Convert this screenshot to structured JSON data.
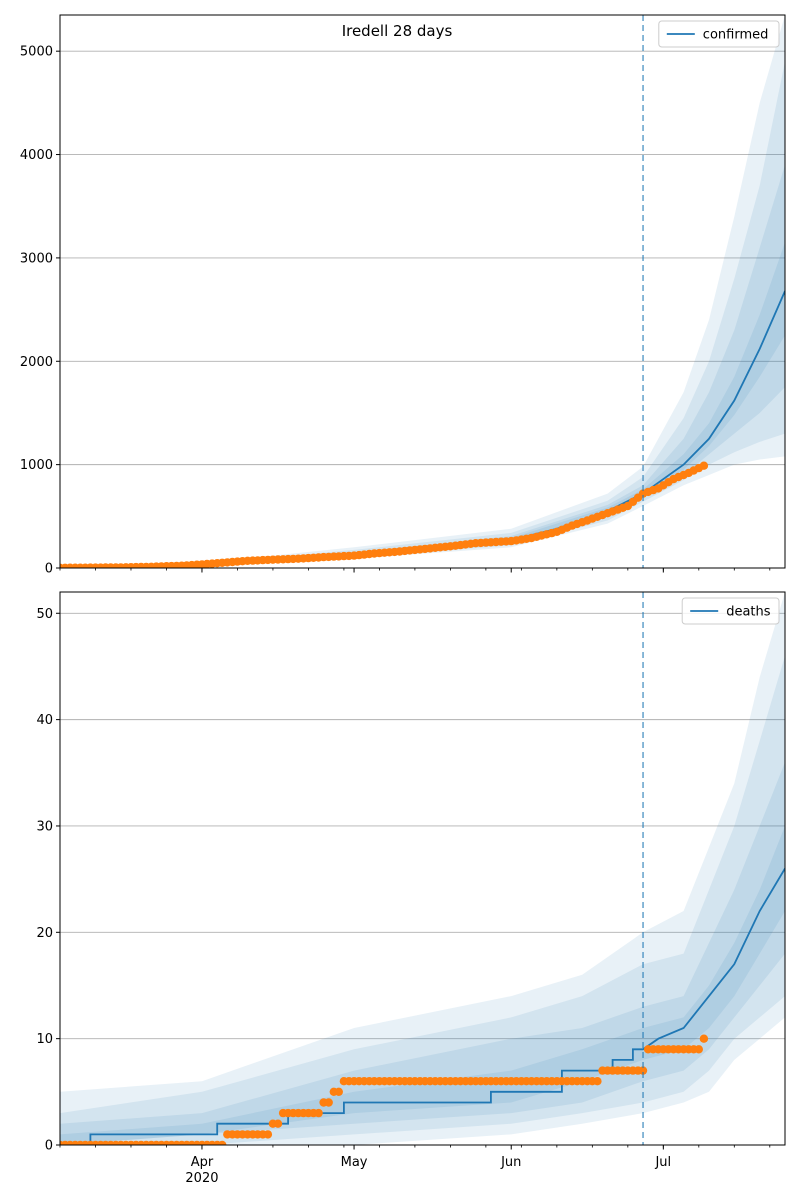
{
  "figure": {
    "title": "Iredell 28 days",
    "x_ticks": [
      {
        "label": "Apr",
        "sub": "2020",
        "date": "2020-04-01"
      },
      {
        "label": "May",
        "sub": "",
        "date": "2020-05-01"
      },
      {
        "label": "Jun",
        "sub": "",
        "date": "2020-06-01"
      },
      {
        "label": "Jul",
        "sub": "",
        "date": "2020-07-01"
      }
    ],
    "x_range": [
      "2020-03-04",
      "2020-07-25"
    ],
    "forecast_start": "2020-06-27",
    "colors": {
      "line": "#1f77b4",
      "band": "#1f77b4",
      "observed": "#ff7f0e",
      "grid": "#b0b0b0"
    }
  },
  "chart_data": [
    {
      "type": "line",
      "title": "Iredell 28 days",
      "xlabel": "",
      "ylabel": "",
      "ylim": [
        0,
        5350
      ],
      "y_ticks": [
        0,
        1000,
        2000,
        3000,
        4000,
        5000
      ],
      "grid": "y",
      "legend": {
        "position": "top-right",
        "entries": [
          "confirmed"
        ]
      },
      "median": {
        "name": "confirmed",
        "x": [
          "2020-03-04",
          "2020-03-20",
          "2020-04-01",
          "2020-04-15",
          "2020-05-01",
          "2020-05-15",
          "2020-06-01",
          "2020-06-10",
          "2020-06-20",
          "2020-06-27",
          "2020-07-05",
          "2020-07-10",
          "2020-07-15",
          "2020-07-20",
          "2020-07-25"
        ],
        "y": [
          5,
          10,
          30,
          75,
          130,
          180,
          270,
          380,
          550,
          720,
          1000,
          1250,
          1620,
          2120,
          2680
        ]
      },
      "bands": [
        {
          "x": [
            "2020-03-04",
            "2020-04-01",
            "2020-05-01",
            "2020-06-01",
            "2020-06-20",
            "2020-06-27",
            "2020-07-05",
            "2020-07-10",
            "2020-07-15",
            "2020-07-20",
            "2020-07-25"
          ],
          "low": [
            0,
            15,
            90,
            200,
            430,
            600,
            800,
            900,
            1000,
            1050,
            1080
          ],
          "high": [
            15,
            50,
            200,
            380,
            720,
            980,
            1700,
            2400,
            3400,
            4500,
            5350
          ]
        },
        {
          "x": [
            "2020-03-04",
            "2020-04-01",
            "2020-05-01",
            "2020-06-01",
            "2020-06-20",
            "2020-06-27",
            "2020-07-05",
            "2020-07-10",
            "2020-07-15",
            "2020-07-20",
            "2020-07-25"
          ],
          "low": [
            0,
            20,
            100,
            220,
            460,
            640,
            850,
            1000,
            1120,
            1220,
            1300
          ],
          "high": [
            12,
            42,
            175,
            340,
            650,
            880,
            1450,
            2000,
            2800,
            3700,
            4900
          ]
        },
        {
          "x": [
            "2020-03-04",
            "2020-04-01",
            "2020-05-01",
            "2020-06-01",
            "2020-06-20",
            "2020-06-27",
            "2020-07-05",
            "2020-07-10",
            "2020-07-15",
            "2020-07-20",
            "2020-07-25"
          ],
          "low": [
            2,
            25,
            115,
            240,
            500,
            680,
            900,
            1100,
            1300,
            1500,
            1750
          ],
          "high": [
            9,
            36,
            150,
            310,
            610,
            800,
            1250,
            1700,
            2300,
            3100,
            3900
          ]
        },
        {
          "x": [
            "2020-03-04",
            "2020-04-01",
            "2020-05-01",
            "2020-06-01",
            "2020-06-20",
            "2020-06-27",
            "2020-07-05",
            "2020-07-10",
            "2020-07-15",
            "2020-07-20",
            "2020-07-25"
          ],
          "low": [
            3,
            28,
            125,
            255,
            525,
            700,
            950,
            1180,
            1480,
            1850,
            2250
          ],
          "high": [
            7,
            33,
            140,
            290,
            585,
            760,
            1100,
            1400,
            1850,
            2450,
            3150
          ]
        }
      ],
      "observed": {
        "x": [
          "2020-03-04",
          "2020-03-15",
          "2020-03-22",
          "2020-03-28",
          "2020-04-01",
          "2020-04-05",
          "2020-04-10",
          "2020-04-15",
          "2020-04-20",
          "2020-04-25",
          "2020-05-01",
          "2020-05-05",
          "2020-05-10",
          "2020-05-15",
          "2020-05-20",
          "2020-05-25",
          "2020-06-01",
          "2020-06-05",
          "2020-06-10",
          "2020-06-13",
          "2020-06-16",
          "2020-06-20",
          "2020-06-24",
          "2020-06-27",
          "2020-06-30",
          "2020-07-03",
          "2020-07-06",
          "2020-07-09"
        ],
        "y": [
          2,
          5,
          12,
          22,
          35,
          50,
          70,
          80,
          90,
          105,
          120,
          140,
          160,
          185,
          210,
          240,
          260,
          290,
          350,
          410,
          460,
          530,
          600,
          720,
          770,
          860,
          920,
          990
        ]
      }
    },
    {
      "type": "line",
      "xlabel": "",
      "ylabel": "",
      "ylim": [
        0,
        52
      ],
      "y_ticks": [
        0,
        10,
        20,
        30,
        40,
        50
      ],
      "grid": "y",
      "legend": {
        "position": "top-right",
        "entries": [
          "deaths"
        ]
      },
      "median": {
        "name": "deaths",
        "x": [
          "2020-03-04",
          "2020-03-10",
          "2020-03-10",
          "2020-04-04",
          "2020-04-04",
          "2020-04-18",
          "2020-04-18",
          "2020-04-29",
          "2020-04-29",
          "2020-05-28",
          "2020-05-28",
          "2020-06-11",
          "2020-06-11",
          "2020-06-21",
          "2020-06-21",
          "2020-06-25",
          "2020-06-25",
          "2020-06-27",
          "2020-06-30",
          "2020-07-05",
          "2020-07-10",
          "2020-07-15",
          "2020-07-20",
          "2020-07-25"
        ],
        "y": [
          0,
          0,
          1,
          1,
          2,
          2,
          3,
          3,
          4,
          4,
          5,
          5,
          7,
          7,
          8,
          8,
          9,
          9,
          10,
          11,
          14,
          17,
          22,
          26
        ]
      },
      "bands": [
        {
          "x": [
            "2020-03-04",
            "2020-04-01",
            "2020-05-01",
            "2020-06-01",
            "2020-06-15",
            "2020-06-27",
            "2020-07-05",
            "2020-07-10",
            "2020-07-15",
            "2020-07-20",
            "2020-07-25"
          ],
          "low": [
            0,
            0,
            0,
            1,
            2,
            3,
            4,
            5,
            8,
            10,
            12
          ],
          "high": [
            5,
            6,
            11,
            14,
            16,
            20,
            22,
            28,
            34,
            44,
            52
          ]
        },
        {
          "x": [
            "2020-03-04",
            "2020-04-01",
            "2020-05-01",
            "2020-06-01",
            "2020-06-15",
            "2020-06-27",
            "2020-07-05",
            "2020-07-10",
            "2020-07-15",
            "2020-07-20",
            "2020-07-25"
          ],
          "low": [
            0,
            0,
            1,
            2,
            3,
            4,
            5,
            7,
            10,
            12,
            14
          ],
          "high": [
            3,
            5,
            9,
            12,
            14,
            17,
            18,
            24,
            30,
            38,
            46
          ]
        },
        {
          "x": [
            "2020-03-04",
            "2020-04-01",
            "2020-05-01",
            "2020-06-01",
            "2020-06-15",
            "2020-06-27",
            "2020-07-05",
            "2020-07-10",
            "2020-07-15",
            "2020-07-20",
            "2020-07-25"
          ],
          "low": [
            0,
            1,
            2,
            3,
            4,
            6,
            7,
            9,
            12,
            15,
            18
          ],
          "high": [
            2,
            3,
            7,
            10,
            11,
            13,
            14,
            19,
            24,
            30,
            36
          ]
        },
        {
          "x": [
            "2020-03-04",
            "2020-04-01",
            "2020-05-01",
            "2020-06-01",
            "2020-06-15",
            "2020-06-27",
            "2020-07-05",
            "2020-07-10",
            "2020-07-15",
            "2020-07-20",
            "2020-07-25"
          ],
          "low": [
            0,
            1,
            3,
            4,
            6,
            8,
            9,
            11,
            14,
            18,
            22
          ],
          "high": [
            1,
            2,
            5,
            7,
            9,
            11,
            12,
            15,
            19,
            24,
            30
          ]
        }
      ],
      "observed": {
        "x": [
          "2020-03-04",
          "2020-03-10",
          "2020-03-16",
          "2020-03-22",
          "2020-03-28",
          "2020-04-03",
          "2020-04-06",
          "2020-04-09",
          "2020-04-12",
          "2020-04-15",
          "2020-04-17",
          "2020-04-20",
          "2020-04-23",
          "2020-04-25",
          "2020-04-27",
          "2020-04-29",
          "2020-05-05",
          "2020-05-15",
          "2020-05-25",
          "2020-06-05",
          "2020-06-15",
          "2020-06-19",
          "2020-06-22",
          "2020-06-25",
          "2020-06-28",
          "2020-07-01",
          "2020-07-05",
          "2020-07-08",
          "2020-07-09"
        ],
        "y": [
          0,
          0,
          0,
          0,
          0,
          0,
          1,
          1,
          1,
          2,
          3,
          3,
          3,
          4,
          5,
          6,
          6,
          6,
          6,
          6,
          6,
          7,
          7,
          7,
          9,
          9,
          9,
          9,
          10
        ]
      }
    }
  ]
}
